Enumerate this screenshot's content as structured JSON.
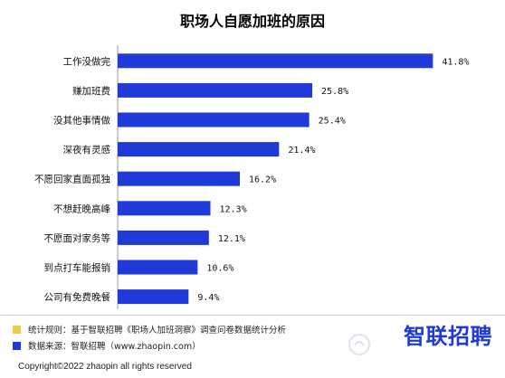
{
  "chart_data": {
    "type": "bar",
    "orientation": "horizontal",
    "title": "职场人自愿加班的原因",
    "categories": [
      "工作没做完",
      "赚加班费",
      "没其他事情做",
      "深夜有灵感",
      "不愿回家直面孤独",
      "不想赶晚高峰",
      "不愿面对家务等",
      "到点打车能报销",
      "公司有免费晚餐"
    ],
    "values": [
      41.8,
      25.8,
      25.4,
      21.4,
      16.2,
      12.3,
      12.1,
      10.6,
      9.4
    ],
    "value_labels": [
      "41.8%",
      "25.8%",
      "25.4%",
      "21.4%",
      "16.2%",
      "12.3%",
      "12.1%",
      "10.6%",
      "9.4%"
    ],
    "xlim": [
      0,
      45
    ],
    "bar_color": "#1f3ad8",
    "grid": false,
    "legend": "none"
  },
  "footer": {
    "note_rule": "统计规则：基于智联招聘《职场人加班洞察》调查问卷数据统计分析",
    "note_source": "数据来源：智联招聘（www.zhaopin.com）",
    "rule_color": "#f2c94c",
    "source_color": "#1f3ad8",
    "copyright": "Copyright©2022 zhaopin all rights reserved"
  },
  "logo": {
    "text": "智联招聘",
    "color": "#1f3ad8"
  }
}
